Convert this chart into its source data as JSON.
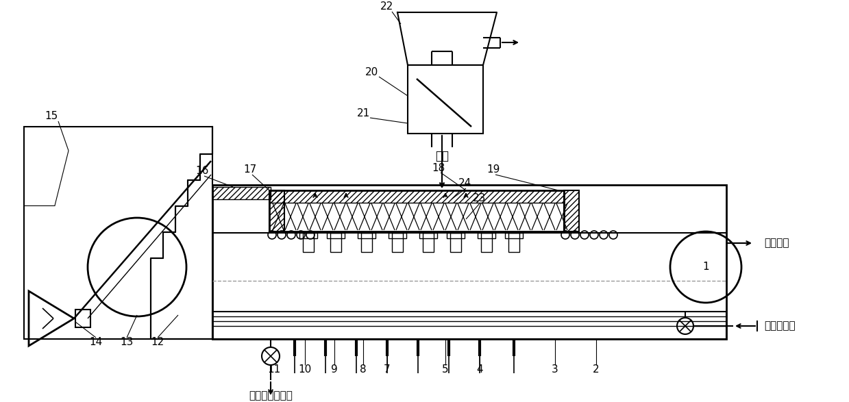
{
  "bg": "#ffffff",
  "lc": "#000000",
  "text_coal": "煽粉",
  "text_graphite": "石墨出口",
  "text_cooloil": "冷却油入口",
  "text_cycle": "循环冷却油出口",
  "figw": 12.39,
  "figh": 5.87
}
